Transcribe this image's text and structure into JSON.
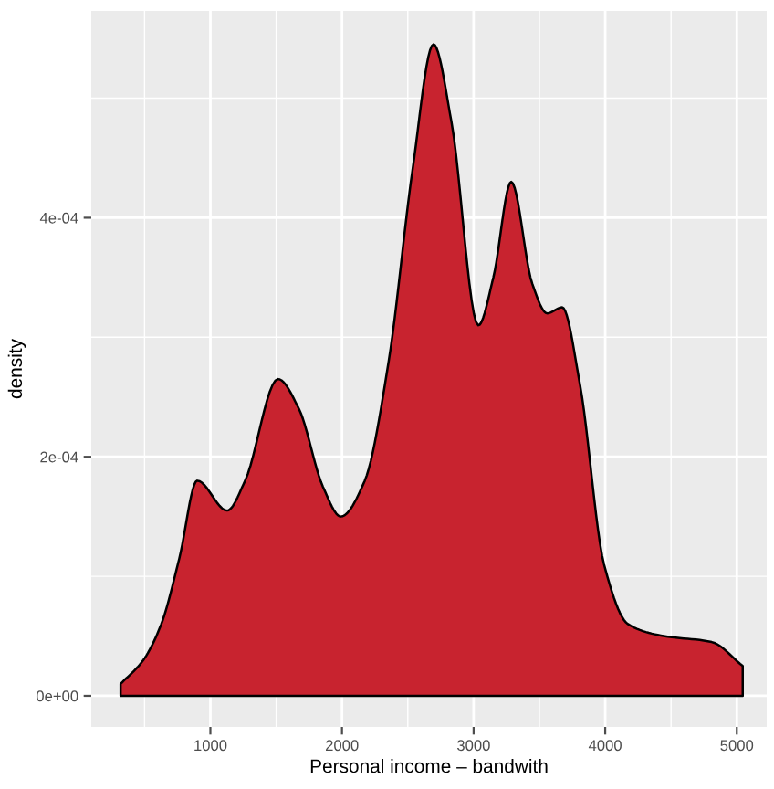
{
  "chart_data": {
    "type": "area",
    "xlabel": "Personal income – bandwith",
    "ylabel": "density",
    "x": [
      318,
      491,
      627,
      764,
      900,
      1127,
      1264,
      1514,
      1673,
      1855,
      1991,
      2173,
      2355,
      2536,
      2695,
      2832,
      3036,
      3150,
      3286,
      3445,
      3559,
      3673,
      3809,
      3991,
      4173,
      4445,
      4809,
      5045
    ],
    "series": [
      {
        "color": "#c8232f",
        "values": [
          1e-05,
          3e-05,
          6e-05,
          0.000115,
          0.00018,
          0.000155,
          0.00018,
          0.000265,
          0.00024,
          0.000175,
          0.00015,
          0.00018,
          0.00028,
          0.00044,
          0.000545,
          0.00048,
          0.00031,
          0.00035,
          0.00043,
          0.000345,
          0.00032,
          0.000325,
          0.00026,
          0.00011,
          6e-05,
          5e-05,
          4.5e-05,
          2.5e-05
        ]
      }
    ],
    "xlim": [
      95,
      5227
    ],
    "ylim": [
      -2.6e-05,
      0.000573
    ],
    "xticks": [
      1000,
      2000,
      3000,
      4000,
      5000
    ],
    "yticks": [
      {
        "value": 0,
        "label": "0e+00"
      },
      {
        "value": 0.0002,
        "label": "2e-04"
      },
      {
        "value": 0.0004,
        "label": "4e-04"
      }
    ],
    "grid": true
  }
}
